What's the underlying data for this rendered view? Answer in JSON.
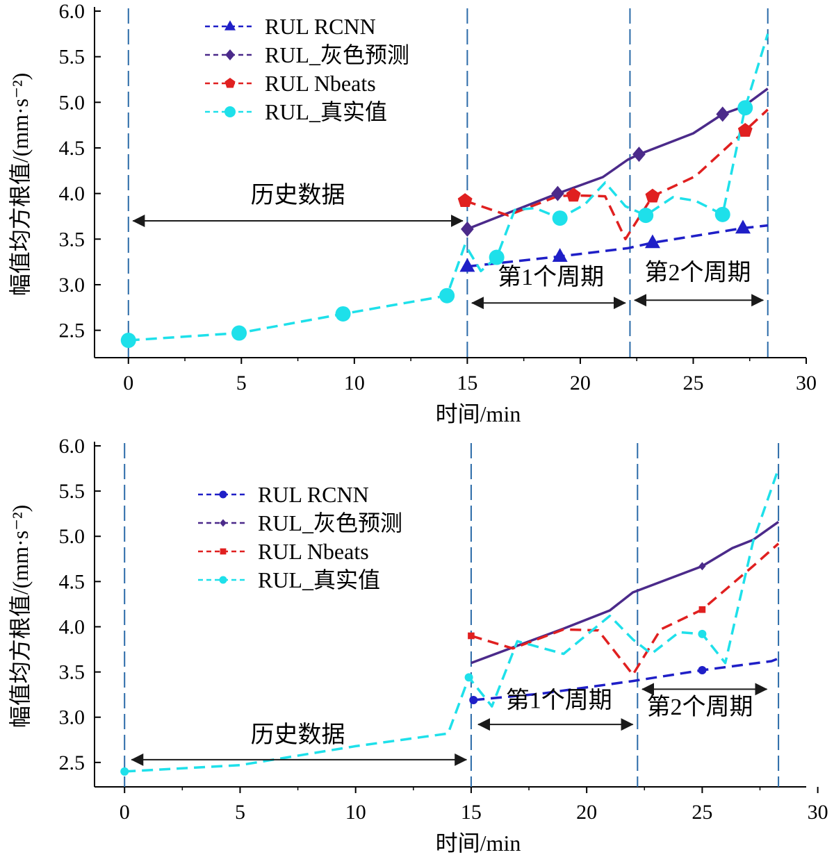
{
  "chart_data": [
    {
      "type": "line",
      "title": "",
      "xlabel": "时间/min",
      "ylabel": "幅值均方根值/(mm·s⁻²)",
      "xlim": [
        -1.5,
        30
      ],
      "ylim": [
        2.2,
        6.0
      ],
      "xticks": [
        0,
        5,
        10,
        15,
        20,
        25,
        30
      ],
      "yticks": [
        2.5,
        3.0,
        3.5,
        4.0,
        4.5,
        5.0,
        5.5,
        6.0
      ],
      "grid": false,
      "legend_position": "top-center",
      "series": [
        {
          "name": "RUL RCNN",
          "color": "#1f1fc7",
          "dash": "dashed",
          "marker": "triangle",
          "points": [
            [
              15.0,
              3.2
            ],
            [
              19.1,
              3.31
            ],
            [
              22.1,
              3.4
            ],
            [
              23.2,
              3.46
            ],
            [
              27.2,
              3.62
            ],
            [
              28.3,
              3.65
            ]
          ],
          "marker_points": [
            [
              15.0,
              3.2
            ],
            [
              19.1,
              3.31
            ],
            [
              23.2,
              3.46
            ],
            [
              27.2,
              3.62
            ]
          ]
        },
        {
          "name": "RUL_灰色预测",
          "color": "#4b2a8a",
          "dash": "solid",
          "marker": "diamond",
          "points": [
            [
              15.0,
              3.61
            ],
            [
              19.0,
              4.0
            ],
            [
              21.0,
              4.18
            ],
            [
              22.1,
              4.37
            ],
            [
              22.6,
              4.43
            ],
            [
              25.0,
              4.66
            ],
            [
              26.3,
              4.87
            ],
            [
              27.2,
              4.95
            ],
            [
              28.3,
              5.15
            ]
          ],
          "marker_points": [
            [
              15.0,
              3.61
            ],
            [
              19.0,
              4.0
            ],
            [
              22.6,
              4.43
            ],
            [
              26.3,
              4.87
            ]
          ]
        },
        {
          "name": "RUL Nbeats",
          "color": "#e02020",
          "dash": "dashed",
          "marker": "pentagon",
          "points": [
            [
              14.9,
              3.92
            ],
            [
              16.8,
              3.76
            ],
            [
              19.0,
              3.97
            ],
            [
              19.7,
              3.98
            ],
            [
              21.1,
              3.97
            ],
            [
              22.0,
              3.5
            ],
            [
              23.2,
              3.97
            ],
            [
              25.1,
              4.19
            ],
            [
              27.3,
              4.69
            ],
            [
              28.3,
              4.92
            ]
          ],
          "marker_points": [
            [
              14.9,
              3.92
            ],
            [
              19.7,
              3.98
            ],
            [
              23.2,
              3.97
            ],
            [
              27.3,
              4.69
            ]
          ]
        },
        {
          "name": "RUL_真实值",
          "color": "#1ee0ea",
          "dash": "dashed",
          "marker": "circle",
          "points": [
            [
              0.0,
              2.39
            ],
            [
              4.9,
              2.47
            ],
            [
              9.5,
              2.68
            ],
            [
              14.1,
              2.88
            ],
            [
              14.9,
              3.44
            ],
            [
              15.6,
              3.15
            ],
            [
              16.3,
              3.3
            ],
            [
              17.1,
              3.82
            ],
            [
              18.0,
              3.84
            ],
            [
              19.1,
              3.73
            ],
            [
              20.2,
              3.88
            ],
            [
              21.1,
              4.12
            ],
            [
              22.0,
              3.86
            ],
            [
              22.9,
              3.76
            ],
            [
              24.1,
              3.96
            ],
            [
              25.1,
              3.92
            ],
            [
              26.3,
              3.77
            ],
            [
              27.3,
              4.94
            ],
            [
              28.3,
              5.75
            ]
          ],
          "marker_points": [
            [
              0.0,
              2.39
            ],
            [
              4.9,
              2.47
            ],
            [
              9.5,
              2.68
            ],
            [
              14.1,
              2.88
            ],
            [
              16.3,
              3.3
            ],
            [
              19.1,
              3.73
            ],
            [
              22.9,
              3.76
            ],
            [
              26.3,
              3.77
            ],
            [
              27.3,
              4.94
            ]
          ]
        }
      ],
      "vlines": [
        0,
        15,
        22.2,
        28.3
      ],
      "annotations": [
        {
          "text": "历史数据",
          "x": 7.5,
          "y": 3.9,
          "arrow_from": [
            0.2,
            3.7
          ],
          "arrow_to": [
            14.8,
            3.7
          ]
        },
        {
          "text": "第1个周期",
          "x": 18.7,
          "y": 3.0,
          "arrow_from": [
            15.2,
            2.8
          ],
          "arrow_to": [
            22.0,
            2.8
          ]
        },
        {
          "text": "第2个周期",
          "x": 25.2,
          "y": 3.05,
          "arrow_from": [
            22.4,
            2.83
          ],
          "arrow_to": [
            28.1,
            2.83
          ]
        }
      ]
    },
    {
      "type": "line",
      "title": "",
      "xlabel": "时间/min",
      "ylabel": "幅值均方根值/(mm·s⁻²)",
      "xlim": [
        -1.3,
        29.5
      ],
      "ylim": [
        2.23,
        6.0
      ],
      "xticks": [
        0,
        5,
        10,
        15,
        20,
        25,
        30
      ],
      "yticks": [
        2.5,
        3.0,
        3.5,
        4.0,
        4.5,
        5.0,
        5.5,
        6.0
      ],
      "grid": false,
      "legend_position": "top-center",
      "series": [
        {
          "name": "RUL RCNN",
          "color": "#1f1fc7",
          "dash": "dashed",
          "marker": "circle",
          "points": [
            [
              15.1,
              3.19
            ],
            [
              18.0,
              3.26
            ],
            [
              22.0,
              3.4
            ],
            [
              25.0,
              3.52
            ],
            [
              28.0,
              3.62
            ],
            [
              28.3,
              3.65
            ]
          ],
          "marker_points": [
            [
              15.1,
              3.19
            ],
            [
              25.0,
              3.52
            ]
          ]
        },
        {
          "name": "RUL_灰色预测",
          "color": "#4b2a8a",
          "dash": "solid",
          "marker": "diamond",
          "points": [
            [
              15.0,
              3.6
            ],
            [
              19.0,
              3.98
            ],
            [
              21.0,
              4.18
            ],
            [
              22.0,
              4.38
            ],
            [
              25.0,
              4.67
            ],
            [
              26.3,
              4.87
            ],
            [
              27.2,
              4.96
            ],
            [
              28.3,
              5.16
            ]
          ],
          "marker_points": [
            [
              25.0,
              4.67
            ]
          ]
        },
        {
          "name": "RUL Nbeats",
          "color": "#e02020",
          "dash": "dashed",
          "marker": "square",
          "points": [
            [
              15.0,
              3.9
            ],
            [
              16.8,
              3.76
            ],
            [
              19.0,
              3.97
            ],
            [
              20.5,
              3.96
            ],
            [
              22.0,
              3.47
            ],
            [
              23.2,
              3.97
            ],
            [
              25.0,
              4.19
            ],
            [
              27.2,
              4.67
            ],
            [
              28.3,
              4.92
            ]
          ],
          "marker_points": [
            [
              15.0,
              3.9
            ],
            [
              25.0,
              4.19
            ]
          ]
        },
        {
          "name": "RUL_真实值",
          "color": "#1ee0ea",
          "dash": "dashed",
          "marker": "circle",
          "points": [
            [
              0.0,
              2.4
            ],
            [
              5.0,
              2.47
            ],
            [
              10.0,
              2.68
            ],
            [
              14.0,
              2.82
            ],
            [
              14.9,
              3.44
            ],
            [
              15.9,
              3.12
            ],
            [
              17.0,
              3.84
            ],
            [
              19.0,
              3.7
            ],
            [
              21.0,
              4.12
            ],
            [
              22.0,
              3.86
            ],
            [
              22.8,
              3.7
            ],
            [
              24.0,
              3.94
            ],
            [
              25.0,
              3.92
            ],
            [
              26.0,
              3.6
            ],
            [
              27.2,
              4.94
            ],
            [
              28.3,
              5.75
            ]
          ],
          "marker_points": [
            [
              0.0,
              2.4
            ],
            [
              14.9,
              3.44
            ],
            [
              25.0,
              3.92
            ]
          ]
        }
      ],
      "vlines": [
        0,
        15,
        22.2,
        28.3
      ],
      "annotations": [
        {
          "text": "历史数据",
          "x": 7.5,
          "y": 2.72,
          "arrow_from": [
            0.3,
            2.53
          ],
          "arrow_to": [
            14.8,
            2.53
          ]
        },
        {
          "text": "第1个周期",
          "x": 18.8,
          "y": 3.1,
          "arrow_from": [
            15.3,
            2.92
          ],
          "arrow_to": [
            22.0,
            2.92
          ]
        },
        {
          "text": "第2个周期",
          "x": 24.9,
          "y": 3.03,
          "arrow_from": [
            22.4,
            3.31
          ],
          "arrow_to": [
            27.8,
            3.31
          ]
        }
      ]
    }
  ]
}
